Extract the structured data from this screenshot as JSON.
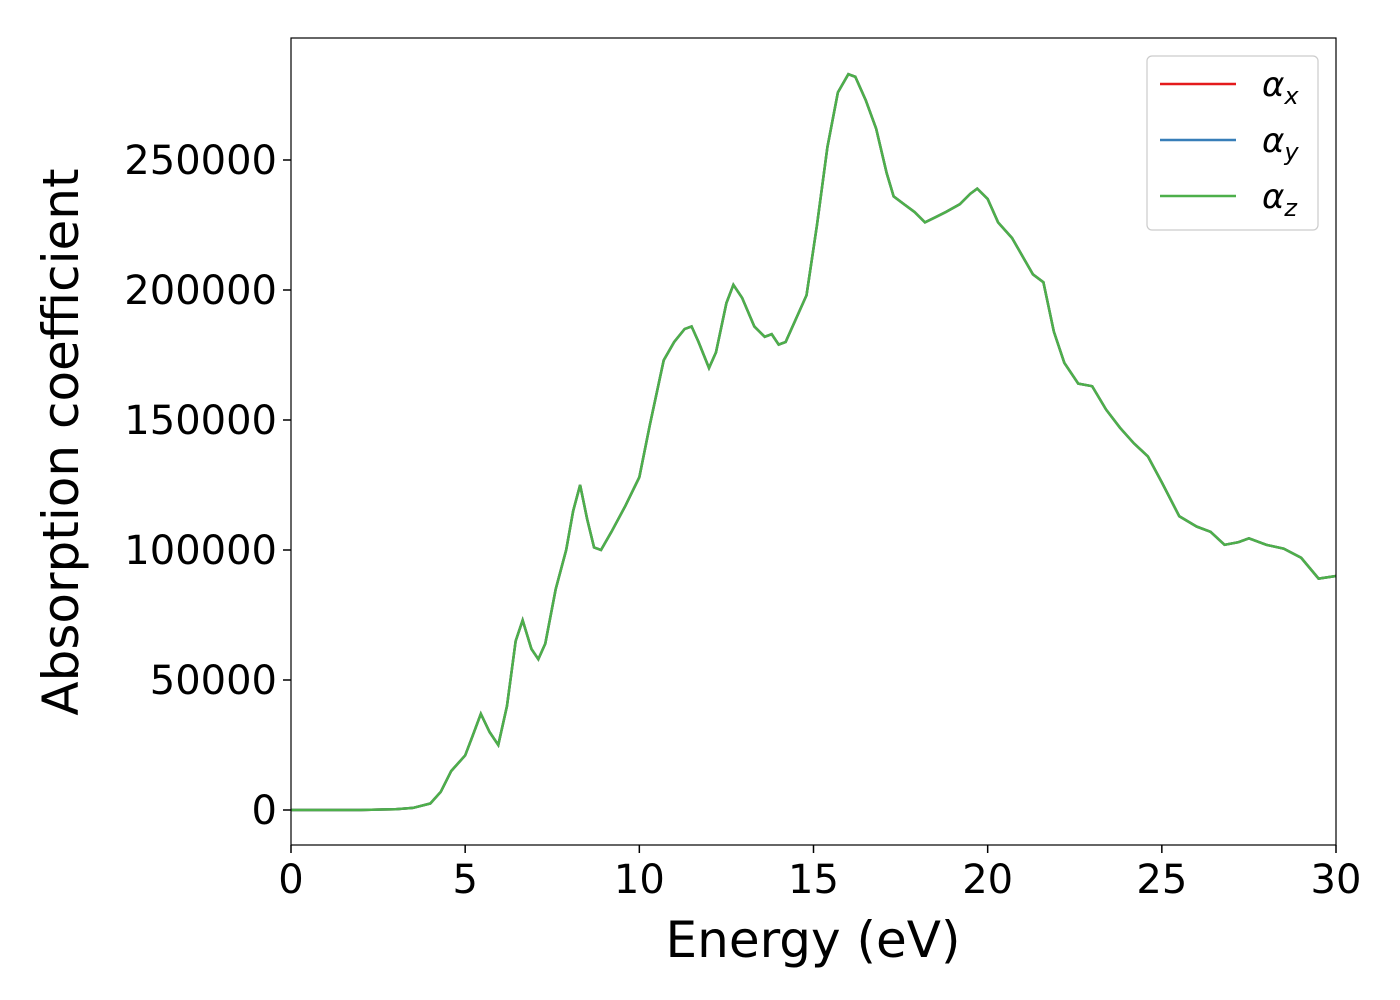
{
  "chart_data": {
    "type": "line",
    "xlabel": "Energy (eV)",
    "ylabel": "Absorption coefficient",
    "xlim": [
      0,
      30
    ],
    "ylim": [
      -13462,
      296923
    ],
    "xticks": [
      0,
      5,
      10,
      15,
      20,
      25,
      30
    ],
    "yticks": [
      0,
      50000,
      100000,
      150000,
      200000,
      250000
    ],
    "legend": "upper right",
    "x": [
      0,
      1,
      2,
      3,
      3.5,
      4,
      4.3,
      4.6,
      5,
      5.2,
      5.45,
      5.7,
      5.95,
      6.2,
      6.45,
      6.65,
      6.9,
      7.1,
      7.3,
      7.6,
      7.9,
      8.1,
      8.3,
      8.5,
      8.7,
      8.9,
      9.2,
      9.6,
      10,
      10.3,
      10.7,
      11,
      11.3,
      11.5,
      11.7,
      12,
      12.2,
      12.5,
      12.7,
      12.95,
      13.3,
      13.6,
      13.8,
      14,
      14.2,
      14.5,
      14.8,
      15.1,
      15.4,
      15.7,
      16,
      16.2,
      16.5,
      16.8,
      17.1,
      17.3,
      17.6,
      17.9,
      18.2,
      18.5,
      18.8,
      19.2,
      19.5,
      19.7,
      20,
      20.3,
      20.7,
      21,
      21.3,
      21.6,
      21.9,
      22.2,
      22.6,
      23,
      23.4,
      23.8,
      24.2,
      24.6,
      25,
      25.5,
      26,
      26.4,
      26.8,
      27.2,
      27.5,
      28,
      28.5,
      29,
      29.5,
      30
    ],
    "series": [
      {
        "name": "αx",
        "color": "#e41a1c",
        "values": [
          0,
          0,
          0,
          300,
          800,
          2500,
          7000,
          15000,
          21000,
          28000,
          37000,
          30000,
          25000,
          40000,
          65000,
          73000,
          62000,
          58000,
          64000,
          85000,
          100000,
          115000,
          125000,
          112000,
          101000,
          100000,
          107000,
          117000,
          128000,
          148000,
          173000,
          180000,
          185000,
          186000,
          180000,
          170000,
          176000,
          195000,
          202000,
          197000,
          186000,
          182000,
          183000,
          179000,
          180000,
          189000,
          198000,
          225000,
          255000,
          276000,
          283000,
          282000,
          273000,
          262000,
          245000,
          236000,
          233000,
          230000,
          226000,
          228000,
          230000,
          233000,
          237000,
          239000,
          235000,
          226000,
          220000,
          213000,
          206000,
          203000,
          184000,
          172000,
          164000,
          163000,
          154000,
          147000,
          141000,
          136000,
          126000,
          113000,
          109000,
          107000,
          102000,
          103000,
          104500,
          102000,
          100500,
          97000,
          89000,
          90000
        ]
      },
      {
        "name": "αy",
        "color": "#377eb8",
        "values": [
          0,
          0,
          0,
          300,
          800,
          2500,
          7000,
          15000,
          21000,
          28000,
          37000,
          30000,
          25000,
          40000,
          65000,
          73000,
          62000,
          58000,
          64000,
          85000,
          100000,
          115000,
          125000,
          112000,
          101000,
          100000,
          107000,
          117000,
          128000,
          148000,
          173000,
          180000,
          185000,
          186000,
          180000,
          170000,
          176000,
          195000,
          202000,
          197000,
          186000,
          182000,
          183000,
          179000,
          180000,
          189000,
          198000,
          225000,
          255000,
          276000,
          283000,
          282000,
          273000,
          262000,
          245000,
          236000,
          233000,
          230000,
          226000,
          228000,
          230000,
          233000,
          237000,
          239000,
          235000,
          226000,
          220000,
          213000,
          206000,
          203000,
          184000,
          172000,
          164000,
          163000,
          154000,
          147000,
          141000,
          136000,
          126000,
          113000,
          109000,
          107000,
          102000,
          103000,
          104500,
          102000,
          100500,
          97000,
          89000,
          90000
        ]
      },
      {
        "name": "αz",
        "color": "#4daf4a",
        "values": [
          0,
          0,
          0,
          300,
          800,
          2500,
          7000,
          15000,
          21000,
          28000,
          37000,
          30000,
          25000,
          40000,
          65000,
          73000,
          62000,
          58000,
          64000,
          85000,
          100000,
          115000,
          125000,
          112000,
          101000,
          100000,
          107000,
          117000,
          128000,
          148000,
          173000,
          180000,
          185000,
          186000,
          180000,
          170000,
          176000,
          195000,
          202000,
          197000,
          186000,
          182000,
          183000,
          179000,
          180000,
          189000,
          198000,
          225000,
          255000,
          276000,
          283000,
          282000,
          273000,
          262000,
          245000,
          236000,
          233000,
          230000,
          226000,
          228000,
          230000,
          233000,
          237000,
          239000,
          235000,
          226000,
          220000,
          213000,
          206000,
          203000,
          184000,
          172000,
          164000,
          163000,
          154000,
          147000,
          141000,
          136000,
          126000,
          113000,
          109000,
          107000,
          102000,
          103000,
          104500,
          102000,
          100500,
          97000,
          89000,
          90000
        ]
      }
    ]
  }
}
